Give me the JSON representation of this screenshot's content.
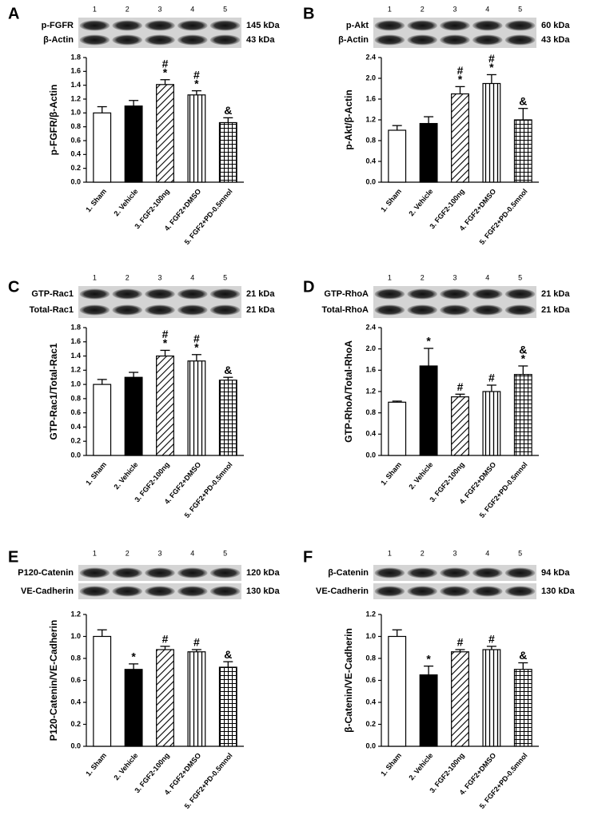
{
  "chart_data": [
    {
      "type": "bar",
      "panel": "A",
      "ylabel": "p-FGFR/β-Actin",
      "blot": {
        "lanes": [
          "1",
          "2",
          "3",
          "4",
          "5"
        ],
        "rows": [
          {
            "protein": "p-FGFR",
            "size": "145 kDa"
          },
          {
            "protein": "β-Actin",
            "size": "43 kDa"
          }
        ]
      },
      "categories": [
        "1. Sham",
        "2. Vehicle",
        "3. FGF2-100ng",
        "4. FGF2+DMSO",
        "5. FGF2+PD-0.5mnol"
      ],
      "values": [
        1.0,
        1.1,
        1.41,
        1.26,
        0.86
      ],
      "errors": [
        0.09,
        0.08,
        0.07,
        0.06,
        0.07
      ],
      "annotations": [
        null,
        null,
        [
          "#",
          "*"
        ],
        [
          "#",
          "*"
        ],
        [
          "&"
        ]
      ],
      "fills": [
        "white",
        "black",
        "diagonal",
        "vertical",
        "grid"
      ],
      "ylim": [
        0,
        1.8
      ],
      "yticks": [
        {
          "value": 0,
          "label": "0.0"
        },
        0.2,
        0.4,
        0.6,
        0.8,
        {
          "value": 1,
          "label": "1.0"
        },
        1.2,
        1.4,
        1.6,
        1.8
      ]
    },
    {
      "type": "bar",
      "panel": "B",
      "ylabel": "p-Akt/β-Actin",
      "blot": {
        "lanes": [
          "1",
          "2",
          "3",
          "4",
          "5"
        ],
        "rows": [
          {
            "protein": "p-Akt",
            "size": "60 kDa"
          },
          {
            "protein": "β-Actin",
            "size": "43 kDa"
          }
        ]
      },
      "categories": [
        "1. Sham",
        "2. Vehicle",
        "3. FGF2-100ng",
        "4. FGF2+DMSO",
        "5. FGF2+PD-0.5mnol"
      ],
      "values": [
        1.0,
        1.13,
        1.7,
        1.9,
        1.2
      ],
      "errors": [
        0.09,
        0.13,
        0.14,
        0.17,
        0.22
      ],
      "annotations": [
        null,
        null,
        [
          "#",
          "*"
        ],
        [
          "#",
          "*"
        ],
        [
          "&"
        ]
      ],
      "fills": [
        "white",
        "black",
        "diagonal",
        "vertical",
        "grid"
      ],
      "ylim": [
        0,
        2.4
      ],
      "yticks": [
        {
          "value": 0,
          "label": "0.0"
        },
        0.4,
        0.8,
        1.2,
        1.6,
        {
          "value": 2,
          "label": "2.0"
        },
        2.4
      ]
    },
    {
      "type": "bar",
      "panel": "C",
      "ylabel": "GTP-Rac1/Total-Rac1",
      "blot": {
        "lanes": [
          "1",
          "2",
          "3",
          "4",
          "5"
        ],
        "rows": [
          {
            "protein": "GTP-Rac1",
            "size": "21 kDa"
          },
          {
            "protein": "Total-Rac1",
            "size": "21 kDa"
          }
        ]
      },
      "categories": [
        "1. Sham",
        "2. Vehicle",
        "3. FGF2-100ng",
        "4. FGF2+DMSO",
        "5. FGF2+PD-0.5mnol"
      ],
      "values": [
        1.0,
        1.1,
        1.4,
        1.33,
        1.06
      ],
      "errors": [
        0.07,
        0.07,
        0.08,
        0.09,
        0.04
      ],
      "annotations": [
        null,
        null,
        [
          "#",
          "*"
        ],
        [
          "#",
          "*"
        ],
        [
          "&"
        ]
      ],
      "fills": [
        "white",
        "black",
        "diagonal",
        "vertical",
        "grid"
      ],
      "ylim": [
        0,
        1.8
      ],
      "yticks": [
        {
          "value": 0,
          "label": "0.0"
        },
        0.2,
        0.4,
        0.6,
        0.8,
        {
          "value": 1,
          "label": "1.0"
        },
        1.2,
        1.4,
        1.6,
        1.8
      ]
    },
    {
      "type": "bar",
      "panel": "D",
      "ylabel": "GTP-RhoA/Total-RhoA",
      "blot": {
        "lanes": [
          "1",
          "2",
          "3",
          "4",
          "5"
        ],
        "rows": [
          {
            "protein": "GTP-RhoA",
            "size": "21 kDa"
          },
          {
            "protein": "Total-RhoA",
            "size": "21 kDa"
          }
        ]
      },
      "categories": [
        "1. Sham",
        "2. Vehicle",
        "3. FGF2-100ng",
        "4. FGF2+DMSO",
        "5. FGF2+PD-0.5mnol"
      ],
      "values": [
        1.0,
        1.68,
        1.1,
        1.2,
        1.52
      ],
      "errors": [
        0.02,
        0.33,
        0.05,
        0.12,
        0.16
      ],
      "annotations": [
        null,
        [
          "*"
        ],
        [
          "#"
        ],
        [
          "#"
        ],
        [
          "&",
          "*"
        ]
      ],
      "fills": [
        "white",
        "black",
        "diagonal",
        "vertical",
        "grid"
      ],
      "ylim": [
        0,
        2.4
      ],
      "yticks": [
        {
          "value": 0,
          "label": "0.0"
        },
        0.4,
        0.8,
        1.2,
        1.6,
        {
          "value": 2,
          "label": "2.0"
        },
        2.4
      ]
    },
    {
      "type": "bar",
      "panel": "E",
      "ylabel": "P120-Catenin/VE-Cadherin",
      "blot": {
        "lanes": [
          "1",
          "2",
          "3",
          "4",
          "5"
        ],
        "rows": [
          {
            "protein": "P120-Catenin",
            "size": "120 kDa"
          },
          {
            "protein": "VE-Cadherin",
            "size": "130 kDa"
          }
        ]
      },
      "categories": [
        "1. Sham",
        "2. Vehicle",
        "3. FGF2-100ng",
        "4. FGF2+DMSO",
        "5. FGF2+PD-0.5mnol"
      ],
      "values": [
        1.0,
        0.7,
        0.88,
        0.86,
        0.72
      ],
      "errors": [
        0.06,
        0.05,
        0.03,
        0.02,
        0.05
      ],
      "annotations": [
        null,
        [
          "*"
        ],
        [
          "#"
        ],
        [
          "#"
        ],
        [
          "&"
        ]
      ],
      "fills": [
        "white",
        "black",
        "diagonal",
        "vertical",
        "grid"
      ],
      "ylim": [
        0,
        1.2
      ],
      "yticks": [
        {
          "value": 0,
          "label": "0.0"
        },
        0.2,
        0.4,
        0.6,
        0.8,
        {
          "value": 1,
          "label": "1.0"
        },
        1.2
      ]
    },
    {
      "type": "bar",
      "panel": "F",
      "ylabel": "β-Catenin/VE-Cadherin",
      "blot": {
        "lanes": [
          "1",
          "2",
          "3",
          "4",
          "5"
        ],
        "rows": [
          {
            "protein": "β-Catenin",
            "size": "94 kDa"
          },
          {
            "protein": "VE-Cadherin",
            "size": "130 kDa"
          }
        ]
      },
      "categories": [
        "1. Sham",
        "2. Vehicle",
        "3. FGF2-100ng",
        "4. FGF2+DMSO",
        "5. FGF2+PD-0.5mnol"
      ],
      "values": [
        1.0,
        0.65,
        0.86,
        0.88,
        0.7
      ],
      "errors": [
        0.06,
        0.08,
        0.02,
        0.03,
        0.06
      ],
      "annotations": [
        null,
        [
          "*"
        ],
        [
          "#"
        ],
        [
          "#"
        ],
        [
          "&"
        ]
      ],
      "fills": [
        "white",
        "black",
        "diagonal",
        "vertical",
        "grid"
      ],
      "ylim": [
        0,
        1.2
      ],
      "yticks": [
        {
          "value": 0,
          "label": "0.0"
        },
        0.2,
        0.4,
        0.6,
        0.8,
        {
          "value": 1,
          "label": "1.0"
        },
        1.2
      ]
    }
  ]
}
